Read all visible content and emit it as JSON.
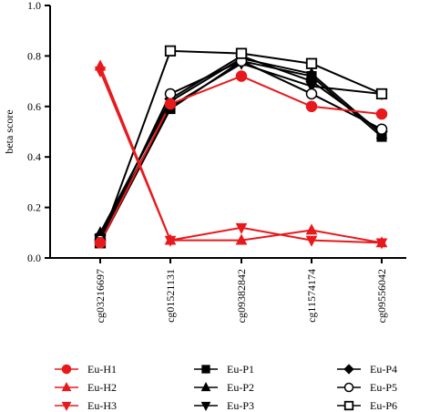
{
  "chart_data": {
    "type": "line",
    "title": "",
    "xlabel": "",
    "ylabel": "beta score",
    "ylim": [
      0,
      1.0
    ],
    "yticks": [
      "0.0",
      "0.2",
      "0.4",
      "0.6",
      "0.8",
      "1.0"
    ],
    "grid": false,
    "legend_position": "bottom",
    "categories": [
      "cg03216697",
      "cg01521131",
      "cg09382842",
      "cg11574174",
      "cg09556042"
    ],
    "series": [
      {
        "name": "Eu-H1",
        "color": "#e8191c",
        "marker": "circle-filled",
        "values": [
          0.06,
          0.61,
          0.72,
          0.6,
          0.57
        ]
      },
      {
        "name": "Eu-H2",
        "color": "#e8191c",
        "marker": "triangle-up",
        "values": [
          0.76,
          0.07,
          0.07,
          0.11,
          0.06
        ]
      },
      {
        "name": "Eu-H3",
        "color": "#e8191c",
        "marker": "triangle-down",
        "values": [
          0.74,
          0.07,
          0.12,
          0.07,
          0.06
        ]
      },
      {
        "name": "Eu-P1",
        "color": "#000000",
        "marker": "square-filled",
        "values": [
          0.06,
          0.59,
          0.78,
          0.72,
          0.48
        ]
      },
      {
        "name": "Eu-P2",
        "color": "#000000",
        "marker": "triangle-up",
        "values": [
          0.1,
          0.62,
          0.79,
          0.73,
          0.49
        ]
      },
      {
        "name": "Eu-P3",
        "color": "#000000",
        "marker": "triangle-down",
        "values": [
          0.08,
          0.6,
          0.77,
          0.68,
          0.65
        ]
      },
      {
        "name": "Eu-P4",
        "color": "#000000",
        "marker": "diamond-filled",
        "values": [
          0.09,
          0.63,
          0.8,
          0.7,
          0.5
        ]
      },
      {
        "name": "Eu-P5",
        "color": "#000000",
        "marker": "circle-open",
        "values": [
          0.07,
          0.65,
          0.78,
          0.65,
          0.51
        ]
      },
      {
        "name": "Eu-P6",
        "color": "#000000",
        "marker": "square-open",
        "values": [
          0.06,
          0.82,
          0.81,
          0.77,
          0.65
        ]
      }
    ]
  }
}
